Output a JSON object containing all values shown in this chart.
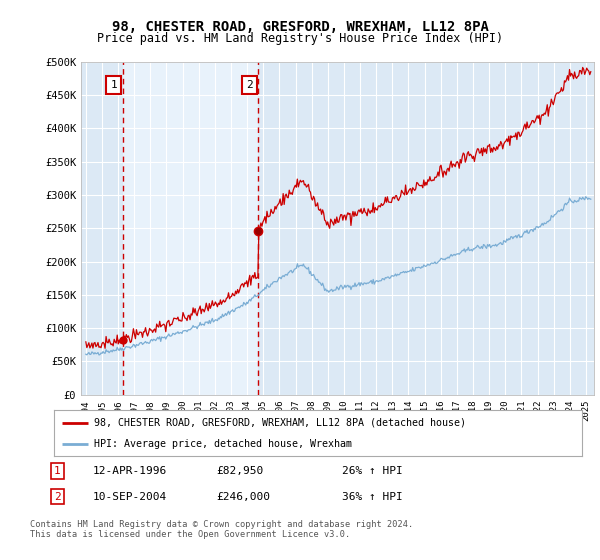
{
  "title": "98, CHESTER ROAD, GRESFORD, WREXHAM, LL12 8PA",
  "subtitle": "Price paid vs. HM Land Registry's House Price Index (HPI)",
  "ylim": [
    0,
    500000
  ],
  "yticks": [
    0,
    50000,
    100000,
    150000,
    200000,
    250000,
    300000,
    350000,
    400000,
    450000,
    500000
  ],
  "ytick_labels": [
    "£0",
    "£50K",
    "£100K",
    "£150K",
    "£200K",
    "£250K",
    "£300K",
    "£350K",
    "£400K",
    "£450K",
    "£500K"
  ],
  "xtick_years": [
    1994,
    1995,
    1996,
    1997,
    1998,
    1999,
    2000,
    2001,
    2002,
    2003,
    2004,
    2005,
    2006,
    2007,
    2008,
    2009,
    2010,
    2011,
    2012,
    2013,
    2014,
    2015,
    2016,
    2017,
    2018,
    2019,
    2020,
    2021,
    2022,
    2023,
    2024,
    2025
  ],
  "background_color": "#ffffff",
  "plot_bg_color": "#dce9f5",
  "grid_color": "#ffffff",
  "hpi_line_color": "#7aadd4",
  "price_line_color": "#cc0000",
  "xlim_min": 1993.7,
  "xlim_max": 2025.5,
  "sale1_date": 1996.28,
  "sale1_price": 82950,
  "sale1_label": "1",
  "sale2_date": 2004.69,
  "sale2_price": 246000,
  "sale2_label": "2",
  "vline_color": "#cc0000",
  "legend_line1": "98, CHESTER ROAD, GRESFORD, WREXHAM, LL12 8PA (detached house)",
  "legend_line2": "HPI: Average price, detached house, Wrexham",
  "table_row1_num": "1",
  "table_row1_date": "12-APR-1996",
  "table_row1_price": "£82,950",
  "table_row1_hpi": "26% ↑ HPI",
  "table_row2_num": "2",
  "table_row2_date": "10-SEP-2004",
  "table_row2_price": "£246,000",
  "table_row2_hpi": "36% ↑ HPI",
  "footer": "Contains HM Land Registry data © Crown copyright and database right 2024.\nThis data is licensed under the Open Government Licence v3.0.",
  "title_fontsize": 10,
  "subtitle_fontsize": 8.5
}
